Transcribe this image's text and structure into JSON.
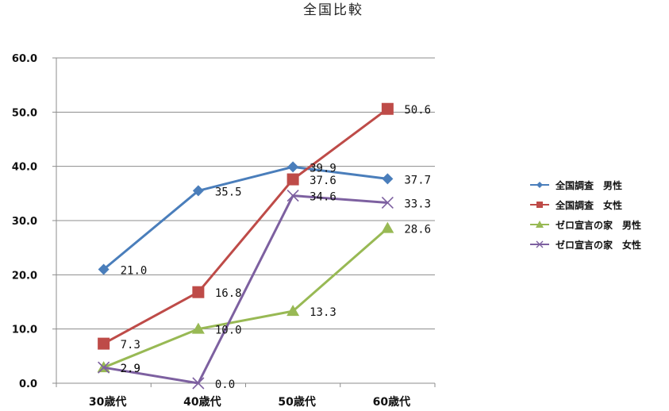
{
  "chart_data": {
    "type": "line",
    "title": "全国比較",
    "categories": [
      "30歳代",
      "40歳代",
      "50歳代",
      "60歳代"
    ],
    "y_ticks": [
      "0.0",
      "10.0",
      "20.0",
      "30.0",
      "40.0",
      "50.0",
      "60.0"
    ],
    "ylim": [
      0,
      60
    ],
    "grid": true,
    "legend_position": "right",
    "series": [
      {
        "name": "全国調査　男性",
        "values": [
          21.0,
          35.5,
          39.9,
          37.7
        ],
        "labels": [
          "21.0",
          "35.5",
          "39.9",
          "37.7"
        ],
        "color": "#4A7EBB",
        "marker": "diamond"
      },
      {
        "name": "全国調査　女性",
        "values": [
          7.3,
          16.8,
          37.6,
          50.6
        ],
        "labels": [
          "7.3",
          "16.8",
          "37.6",
          "50.6"
        ],
        "color": "#BE4B48",
        "marker": "square"
      },
      {
        "name": "ゼロ宣言の家　男性",
        "values": [
          2.9,
          10.0,
          13.3,
          28.6
        ],
        "labels": [
          "2.9",
          "10.0",
          "13.3",
          "28.6"
        ],
        "color": "#98B954",
        "marker": "triangle"
      },
      {
        "name": "ゼロ宣言の家　女性",
        "values": [
          2.9,
          0.0,
          34.6,
          33.3
        ],
        "labels": [
          "2.9",
          "0.0",
          "34.6",
          "33.3"
        ],
        "color": "#7D60A0",
        "marker": "x"
      }
    ]
  }
}
